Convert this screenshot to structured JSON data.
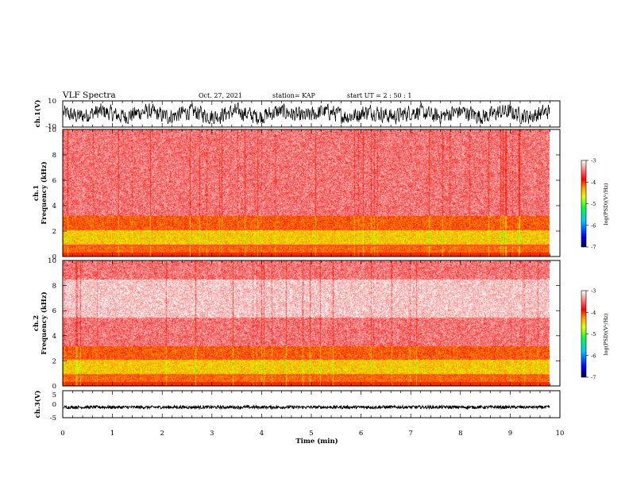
{
  "header": {
    "title": "VLF Spectra",
    "date": "Oct. 27, 2021",
    "station": "station= KAP",
    "start": "start  UT  =   2  : 50 : 1"
  },
  "chart_data": [
    {
      "id": "ch1-waveform",
      "type": "line",
      "ylabel": "ch.1(V)",
      "ylim": [
        -10,
        10
      ],
      "yticks": [
        "10",
        "-10"
      ],
      "xlim": [
        0,
        10
      ],
      "data_extent_min": 9.8,
      "description_level": "noisy waveform centered near 0 V, amplitude about ±6 V"
    },
    {
      "id": "ch1-spectrogram",
      "type": "heatmap",
      "ylabel": "ch.1\nFrequency (kHz)",
      "ylabel_line1": "ch.1",
      "ylabel_line2": "Frequency (kHz)",
      "ylim": [
        0,
        10
      ],
      "yticks": [
        "0",
        "2",
        "4",
        "6",
        "8",
        "10"
      ],
      "xlim": [
        0,
        10
      ],
      "colorbar": {
        "label": "log(PSD)(V²/Hz)",
        "range": [
          -7,
          -3
        ],
        "ticks": [
          "-3",
          "-4",
          "-5",
          "-6",
          "-7"
        ]
      }
    },
    {
      "id": "ch2-spectrogram",
      "type": "heatmap",
      "ylabel_line1": "ch.2",
      "ylabel_line2": "Frequency (kHz)",
      "ylim": [
        0,
        10
      ],
      "yticks": [
        "0",
        "2",
        "4",
        "6",
        "8",
        "10"
      ],
      "xlim": [
        0,
        10
      ],
      "colorbar": {
        "label": "log(PSD)(V²/Hz)",
        "range": [
          -7,
          -3
        ],
        "ticks": [
          "-3",
          "-4",
          "-5",
          "-6",
          "-7"
        ]
      }
    },
    {
      "id": "ch3-waveform",
      "type": "line",
      "ylabel": "ch.3(V)",
      "ylim": [
        -5,
        5
      ],
      "yticks": [
        "5",
        "0",
        "-5"
      ],
      "xlim": [
        0,
        10
      ],
      "xticks": [
        "0",
        "1",
        "2",
        "3",
        "4",
        "5",
        "6",
        "7",
        "8",
        "9",
        "10"
      ],
      "xlabel": "Time (min)",
      "level_volts": -1.1
    }
  ],
  "colors": {
    "colormap": [
      "#000080",
      "#0000ff",
      "#00c8ff",
      "#00ff40",
      "#c8ff00",
      "#ffd000",
      "#ff0000",
      "#ff8080",
      "#ffffff"
    ]
  }
}
